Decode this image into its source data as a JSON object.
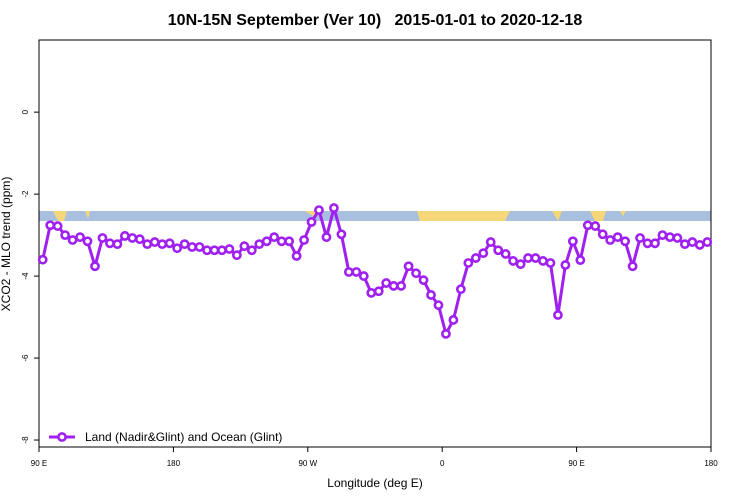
{
  "chart_data": {
    "type": "line",
    "title": "10N-15N September (Ver 10)   2015-01-01 to 2020-12-18",
    "x_label": "Longitude (deg E)",
    "y_label": "XCO2 - MLO trend (ppm)",
    "xlim": [
      90,
      540
    ],
    "ylim": [
      -8.17,
      1.76
    ],
    "xticks": [
      {
        "value": 90,
        "label": "90 E"
      },
      180,
      {
        "value": 270,
        "label": "90 W"
      },
      {
        "value": 360,
        "label": "0"
      },
      {
        "value": 450,
        "label": "90 E"
      },
      {
        "value": 540,
        "label": "180"
      }
    ],
    "yticks": [
      0,
      -2,
      -4,
      -6,
      -8
    ],
    "grid": false,
    "legend": "bottom-left",
    "x": [
      92.5,
      97.5,
      102.5,
      107.5,
      112.5,
      117.5,
      122.5,
      127.5,
      132.5,
      137.5,
      142.5,
      147.5,
      152.5,
      157.5,
      162.5,
      167.5,
      172.5,
      177.5,
      182.5,
      187.5,
      192.5,
      197.5,
      202.5,
      207.5,
      212.5,
      217.5,
      222.5,
      227.5,
      232.5,
      237.5,
      242.5,
      247.5,
      252.5,
      257.5,
      262.5,
      267.5,
      272.5,
      277.5,
      282.5,
      287.5,
      292.5,
      297.5,
      302.5,
      307.5,
      312.5,
      317.5,
      322.5,
      327.5,
      332.5,
      337.5,
      342.5,
      347.5,
      352.5,
      357.5,
      362.5,
      367.5,
      372.5,
      377.5,
      382.5,
      387.5,
      392.5,
      397.5,
      402.5,
      407.5,
      412.5,
      417.5,
      422.5,
      427.5,
      432.5,
      437.5,
      442.5,
      447.5,
      452.5,
      457.5,
      462.5,
      467.5,
      472.5,
      477.5,
      482.5,
      487.5,
      492.5,
      497.5,
      502.5,
      507.5,
      512.5,
      517.5,
      522.5,
      527.5,
      532.5,
      537.5
    ],
    "series": [
      {
        "name": "Land (Nadir&Glint) and Ocean (Glint)",
        "color": "#a020f0",
        "values": [
          -3.6,
          -2.76,
          -2.78,
          -3.0,
          -3.12,
          -3.05,
          -3.15,
          -3.76,
          -3.07,
          -3.2,
          -3.22,
          -3.02,
          -3.07,
          -3.1,
          -3.22,
          -3.17,
          -3.22,
          -3.2,
          -3.32,
          -3.22,
          -3.29,
          -3.29,
          -3.37,
          -3.37,
          -3.37,
          -3.34,
          -3.49,
          -3.27,
          -3.37,
          -3.22,
          -3.15,
          -3.05,
          -3.15,
          -3.15,
          -3.51,
          -3.12,
          -2.68,
          -2.39,
          -3.05,
          -2.34,
          -2.98,
          -3.9,
          -3.9,
          -4.0,
          -4.41,
          -4.37,
          -4.17,
          -4.24,
          -4.24,
          -3.76,
          -3.93,
          -4.1,
          -4.46,
          -4.71,
          -5.41,
          -5.07,
          -4.32,
          -3.68,
          -3.56,
          -3.44,
          -3.17,
          -3.37,
          -3.46,
          -3.63,
          -3.71,
          -3.56,
          -3.56,
          -3.63,
          -3.68,
          -4.95,
          -3.73,
          -3.15,
          -3.61,
          -2.76,
          -2.78,
          -2.98,
          -3.12,
          -3.05,
          -3.15,
          -3.76,
          -3.07,
          -3.2,
          -3.2,
          -3.0,
          -3.05,
          -3.07,
          -3.22,
          -3.17,
          -3.24,
          -3.17
        ]
      }
    ]
  }
}
